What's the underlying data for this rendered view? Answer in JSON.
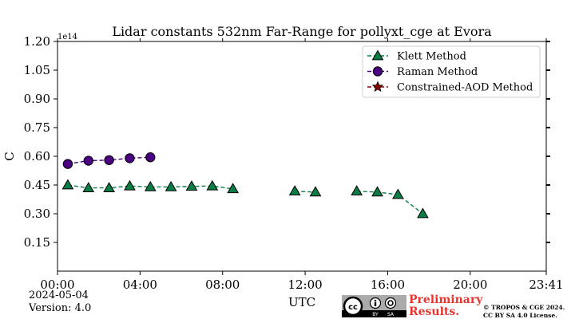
{
  "chart_data": {
    "type": "line",
    "title": "Lidar constants 532nm Far-Range for pollyxt_cge at Evora",
    "xlabel": "UTC",
    "ylabel": "C",
    "y_multiplier_label": "1e14",
    "xlim": [
      0,
      23.683
    ],
    "ylim": [
      0,
      1.2
    ],
    "x_ticks": [
      0,
      4,
      8,
      12,
      16,
      20,
      23.683
    ],
    "x_tick_labels": [
      "00:00",
      "04:00",
      "08:00",
      "12:00",
      "16:00",
      "20:00",
      "23:41"
    ],
    "y_ticks": [
      0.15,
      0.3,
      0.45,
      0.6,
      0.75,
      0.9,
      1.05,
      1.2
    ],
    "y_tick_labels": [
      "0.15",
      "0.30",
      "0.45",
      "0.60",
      "0.75",
      "0.90",
      "1.05",
      "1.20"
    ],
    "legend_position": "top-right",
    "series": [
      {
        "name": "Klett Method",
        "marker": "triangle",
        "color": "#0a7d46",
        "segments": [
          [
            [
              0.5,
              0.45
            ],
            [
              1.5,
              0.435
            ],
            [
              2.5,
              0.435
            ],
            [
              3.5,
              0.445
            ],
            [
              4.5,
              0.44
            ],
            [
              5.5,
              0.44
            ],
            [
              6.5,
              0.443
            ],
            [
              7.5,
              0.445
            ],
            [
              8.5,
              0.43
            ]
          ],
          [
            [
              11.5,
              0.418
            ],
            [
              12.5,
              0.413
            ]
          ],
          [
            [
              14.5,
              0.418
            ],
            [
              15.5,
              0.413
            ],
            [
              16.5,
              0.4
            ],
            [
              17.7,
              0.3
            ]
          ]
        ]
      },
      {
        "name": "Raman Method",
        "marker": "circle",
        "color": "#4b0082",
        "segments": [
          [
            [
              0.5,
              0.56
            ],
            [
              1.5,
              0.577
            ],
            [
              2.5,
              0.58
            ],
            [
              3.5,
              0.59
            ],
            [
              4.5,
              0.595
            ]
          ]
        ]
      },
      {
        "name": "Constrained-AOD Method",
        "marker": "star",
        "color": "#8b0000",
        "segments": []
      }
    ]
  },
  "footer": {
    "date": "2024-05-04",
    "version": "Version: 4.0",
    "preliminary_line1": "Preliminary",
    "preliminary_line2": "Results.",
    "copyright_line1": "© TROPOS & CGE 2024.",
    "copyright_line2": "CC BY SA 4.0 License.",
    "badge_by": "BY",
    "badge_sa": "SA"
  }
}
